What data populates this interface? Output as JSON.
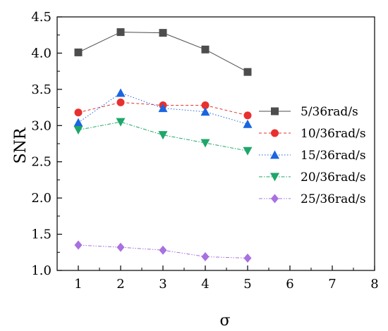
{
  "chart_data": {
    "type": "line",
    "title": "",
    "xlabel": "σ",
    "ylabel": "SNR",
    "xlim": [
      0.5,
      8
    ],
    "ylim": [
      1.0,
      4.5
    ],
    "xticks": [
      1,
      2,
      3,
      4,
      5,
      6,
      7,
      8
    ],
    "yticks": [
      1.0,
      1.5,
      2.0,
      2.5,
      3.0,
      3.5,
      4.0,
      4.5
    ],
    "ytick_labels": [
      "1.0",
      "1.5",
      "2.0",
      "2.5",
      "3.0",
      "3.5",
      "4.0",
      "4.5"
    ],
    "grid": false,
    "legend_position": "right",
    "series": [
      {
        "name": "5/36rad/s",
        "x": [
          1,
          2,
          3,
          4,
          5
        ],
        "values": [
          4.01,
          4.29,
          4.28,
          4.05,
          3.74
        ],
        "color": "#4d4d4d",
        "marker": "square",
        "line": "solid"
      },
      {
        "name": "10/36rad/s",
        "x": [
          1,
          2,
          3,
          4,
          5
        ],
        "values": [
          3.18,
          3.32,
          3.28,
          3.28,
          3.14
        ],
        "color": "#e8302f",
        "marker": "circle",
        "line": "dash"
      },
      {
        "name": "15/36rad/s",
        "x": [
          1,
          2,
          3,
          4,
          5
        ],
        "values": [
          3.04,
          3.45,
          3.24,
          3.19,
          3.02
        ],
        "color": "#1a66e0",
        "marker": "triangle-up",
        "line": "dot"
      },
      {
        "name": "20/36rad/s",
        "x": [
          1,
          2,
          3,
          4,
          5
        ],
        "values": [
          2.94,
          3.05,
          2.87,
          2.76,
          2.65
        ],
        "color": "#1fa66a",
        "marker": "triangle-down",
        "line": "dashdot"
      },
      {
        "name": "25/36rad/s",
        "x": [
          1,
          2,
          3,
          4,
          5
        ],
        "values": [
          1.35,
          1.32,
          1.28,
          1.19,
          1.17
        ],
        "color": "#a870e0",
        "marker": "diamond",
        "line": "dashdotdot"
      }
    ]
  }
}
